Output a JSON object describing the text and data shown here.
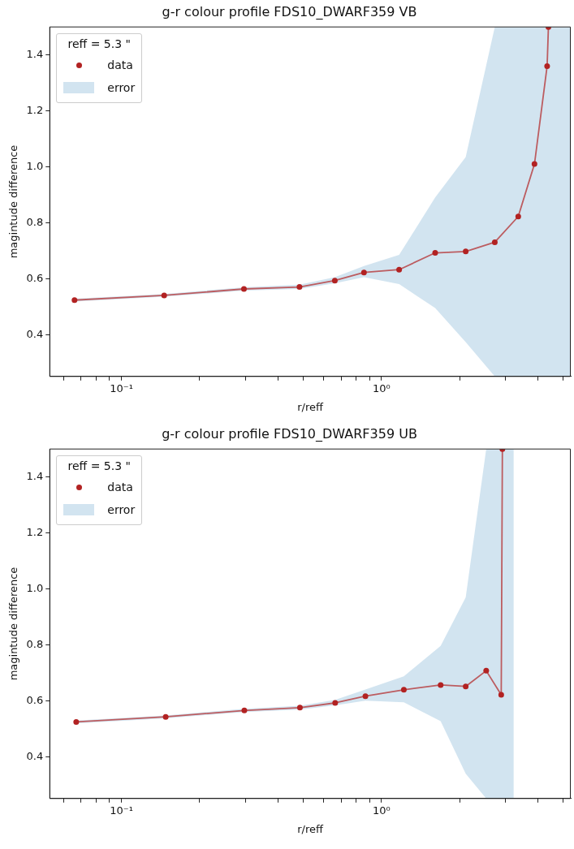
{
  "chart_data": [
    {
      "type": "line",
      "title": "g-r colour profile FDS10_DWARF359 VB",
      "xlabel": "r/reff",
      "ylabel": "magintude difference",
      "legend_title": "reff = 5.3 \"",
      "legend": "top left",
      "log": "x",
      "grid": false,
      "annotations": [
        "error"
      ],
      "xlim": [
        0.053,
        5.35
      ],
      "ylim": [
        0.25,
        1.5
      ],
      "xticks": [
        {
          "value": 0.06,
          "label": null
        },
        {
          "value": 0.07,
          "label": null
        },
        {
          "value": 0.08,
          "label": null
        },
        {
          "value": 0.09,
          "label": null
        },
        {
          "value": 0.1,
          "label": "10⁻¹"
        },
        {
          "value": 0.2,
          "label": null
        },
        {
          "value": 0.3,
          "label": null
        },
        {
          "value": 0.4,
          "label": null
        },
        {
          "value": 0.5,
          "label": null
        },
        {
          "value": 0.6,
          "label": null
        },
        {
          "value": 0.7,
          "label": null
        },
        {
          "value": 0.8,
          "label": null
        },
        {
          "value": 0.9,
          "label": null
        },
        {
          "value": 1,
          "label": "10⁰"
        },
        {
          "value": 2,
          "label": null
        },
        {
          "value": 3,
          "label": null
        },
        {
          "value": 4,
          "label": null
        },
        {
          "value": 5,
          "label": null
        }
      ],
      "yticks": [
        {
          "value": 0.4,
          "label": "0.4"
        },
        {
          "value": 0.6,
          "label": "0.6"
        },
        {
          "value": 0.8,
          "label": "0.8"
        },
        {
          "value": 1.0,
          "label": "1.0"
        },
        {
          "value": 1.2,
          "label": "1.2"
        },
        {
          "value": 1.4,
          "label": "1.4"
        }
      ],
      "series": [
        {
          "name": "data",
          "type": "line",
          "color": "#b22222",
          "marker": "circle",
          "line_style": "solid",
          "x": [
            0.066,
            0.146,
            0.296,
            0.484,
            0.662,
            0.857,
            1.17,
            1.61,
            2.11,
            2.73,
            3.36,
            3.88,
            4.34,
            4.39,
            5.35
          ],
          "values": [
            0.523,
            0.54,
            0.563,
            0.57,
            0.593,
            0.622,
            0.632,
            0.692,
            0.697,
            0.73,
            0.822,
            1.01,
            1.36,
            1.5,
            null
          ],
          "lower": [
            0.518,
            0.535,
            0.557,
            0.563,
            0.583,
            0.605,
            0.58,
            0.495,
            0.373,
            0.25,
            0.25,
            0.25,
            0.25,
            0.25,
            0.25
          ],
          "upper": [
            0.528,
            0.545,
            0.569,
            0.578,
            0.605,
            0.645,
            0.685,
            0.89,
            1.035,
            1.5,
            1.5,
            1.5,
            1.5,
            1.5,
            1.5
          ]
        }
      ]
    },
    {
      "type": "line",
      "title": "g-r colour profile FDS10_DWARF359 UB",
      "xlabel": "r/reff",
      "ylabel": "magintude difference",
      "legend_title": "reff = 5.3 \"",
      "legend": "top left",
      "log": "x",
      "grid": false,
      "annotations": [
        "error"
      ],
      "xlim": [
        0.053,
        5.35
      ],
      "ylim": [
        0.25,
        1.5
      ],
      "xticks": [
        {
          "value": 0.06,
          "label": null
        },
        {
          "value": 0.07,
          "label": null
        },
        {
          "value": 0.08,
          "label": null
        },
        {
          "value": 0.09,
          "label": null
        },
        {
          "value": 0.1,
          "label": "10⁻¹"
        },
        {
          "value": 0.2,
          "label": null
        },
        {
          "value": 0.3,
          "label": null
        },
        {
          "value": 0.4,
          "label": null
        },
        {
          "value": 0.5,
          "label": null
        },
        {
          "value": 0.6,
          "label": null
        },
        {
          "value": 0.7,
          "label": null
        },
        {
          "value": 0.8,
          "label": null
        },
        {
          "value": 0.9,
          "label": null
        },
        {
          "value": 1,
          "label": "10⁰"
        },
        {
          "value": 2,
          "label": null
        },
        {
          "value": 3,
          "label": null
        },
        {
          "value": 4,
          "label": null
        },
        {
          "value": 5,
          "label": null
        }
      ],
      "yticks": [
        {
          "value": 0.4,
          "label": "0.4"
        },
        {
          "value": 0.6,
          "label": "0.6"
        },
        {
          "value": 0.8,
          "label": "0.8"
        },
        {
          "value": 1.0,
          "label": "1.0"
        },
        {
          "value": 1.2,
          "label": "1.2"
        },
        {
          "value": 1.4,
          "label": "1.4"
        }
      ],
      "series": [
        {
          "name": "data",
          "type": "line",
          "color": "#b22222",
          "marker": "circle",
          "line_style": "solid",
          "x": [
            0.067,
            0.148,
            0.297,
            0.486,
            0.664,
            0.868,
            1.22,
            1.69,
            2.11,
            2.53,
            2.89,
            2.92,
            3.23
          ],
          "values": [
            0.524,
            0.542,
            0.565,
            0.575,
            0.592,
            0.616,
            0.639,
            0.656,
            0.651,
            0.707,
            0.621,
            1.5,
            null
          ],
          "lower": [
            0.519,
            0.537,
            0.559,
            0.568,
            0.583,
            0.6,
            0.594,
            0.527,
            0.339,
            0.25,
            0.25,
            0.25,
            0.25
          ],
          "upper": [
            0.529,
            0.547,
            0.571,
            0.582,
            0.603,
            0.64,
            0.687,
            0.796,
            0.969,
            1.5,
            1.5,
            1.5,
            1.5
          ]
        }
      ]
    }
  ]
}
